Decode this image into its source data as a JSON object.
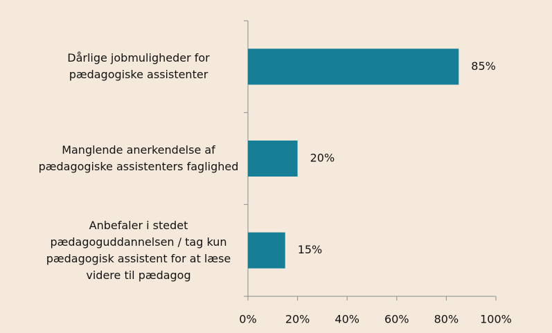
{
  "chart_data": {
    "type": "bar",
    "orientation": "horizontal",
    "categories": [
      "Dårlige jobmuligheder for pædagogiske assistenter",
      "Manglende anerkendelse af pædagogiske assistenters faglighed",
      "Anbefaler i stedet pædagoguddannelsen / tag kun pædagogisk assistent for at læse videre til pædagog"
    ],
    "values": [
      85,
      20,
      15
    ],
    "value_labels": [
      "85%",
      "20%",
      "15%"
    ],
    "color": "#177e98",
    "xlim": [
      0,
      100
    ],
    "xticks": [
      {
        "value": 0,
        "label": "0%"
      },
      {
        "value": 20,
        "label": "20%"
      },
      {
        "value": 40,
        "label": "40%"
      },
      {
        "value": 60,
        "label": "60%"
      },
      {
        "value": 80,
        "label": "80%"
      },
      {
        "value": 100,
        "label": "100%"
      }
    ]
  }
}
